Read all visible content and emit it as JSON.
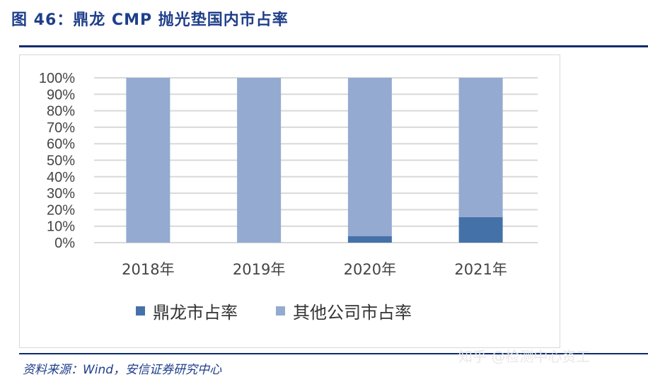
{
  "title": "图 46：鼎龙 CMP 抛光垫国内市占率",
  "source": "资料来源：Wind，安信证券研究中心",
  "watermark": "知乎 @检测中心资工",
  "colors": {
    "dinglong": "#4472a8",
    "others": "#94aad0",
    "grid": "#d9d9d9"
  },
  "chart_data": {
    "type": "bar",
    "stacked": true,
    "categories": [
      "2018年",
      "2019年",
      "2020年",
      "2021年"
    ],
    "series": [
      {
        "name": "鼎龙市占率",
        "values": [
          0,
          0,
          4,
          15.5
        ]
      },
      {
        "name": "其他公司市占率",
        "values": [
          100,
          100,
          96,
          84.5
        ]
      }
    ],
    "yticks": [
      "0%",
      "10%",
      "20%",
      "30%",
      "40%",
      "50%",
      "60%",
      "70%",
      "80%",
      "90%",
      "100%"
    ],
    "ylim": [
      0,
      100
    ],
    "grid": true,
    "legend": "bottom"
  }
}
